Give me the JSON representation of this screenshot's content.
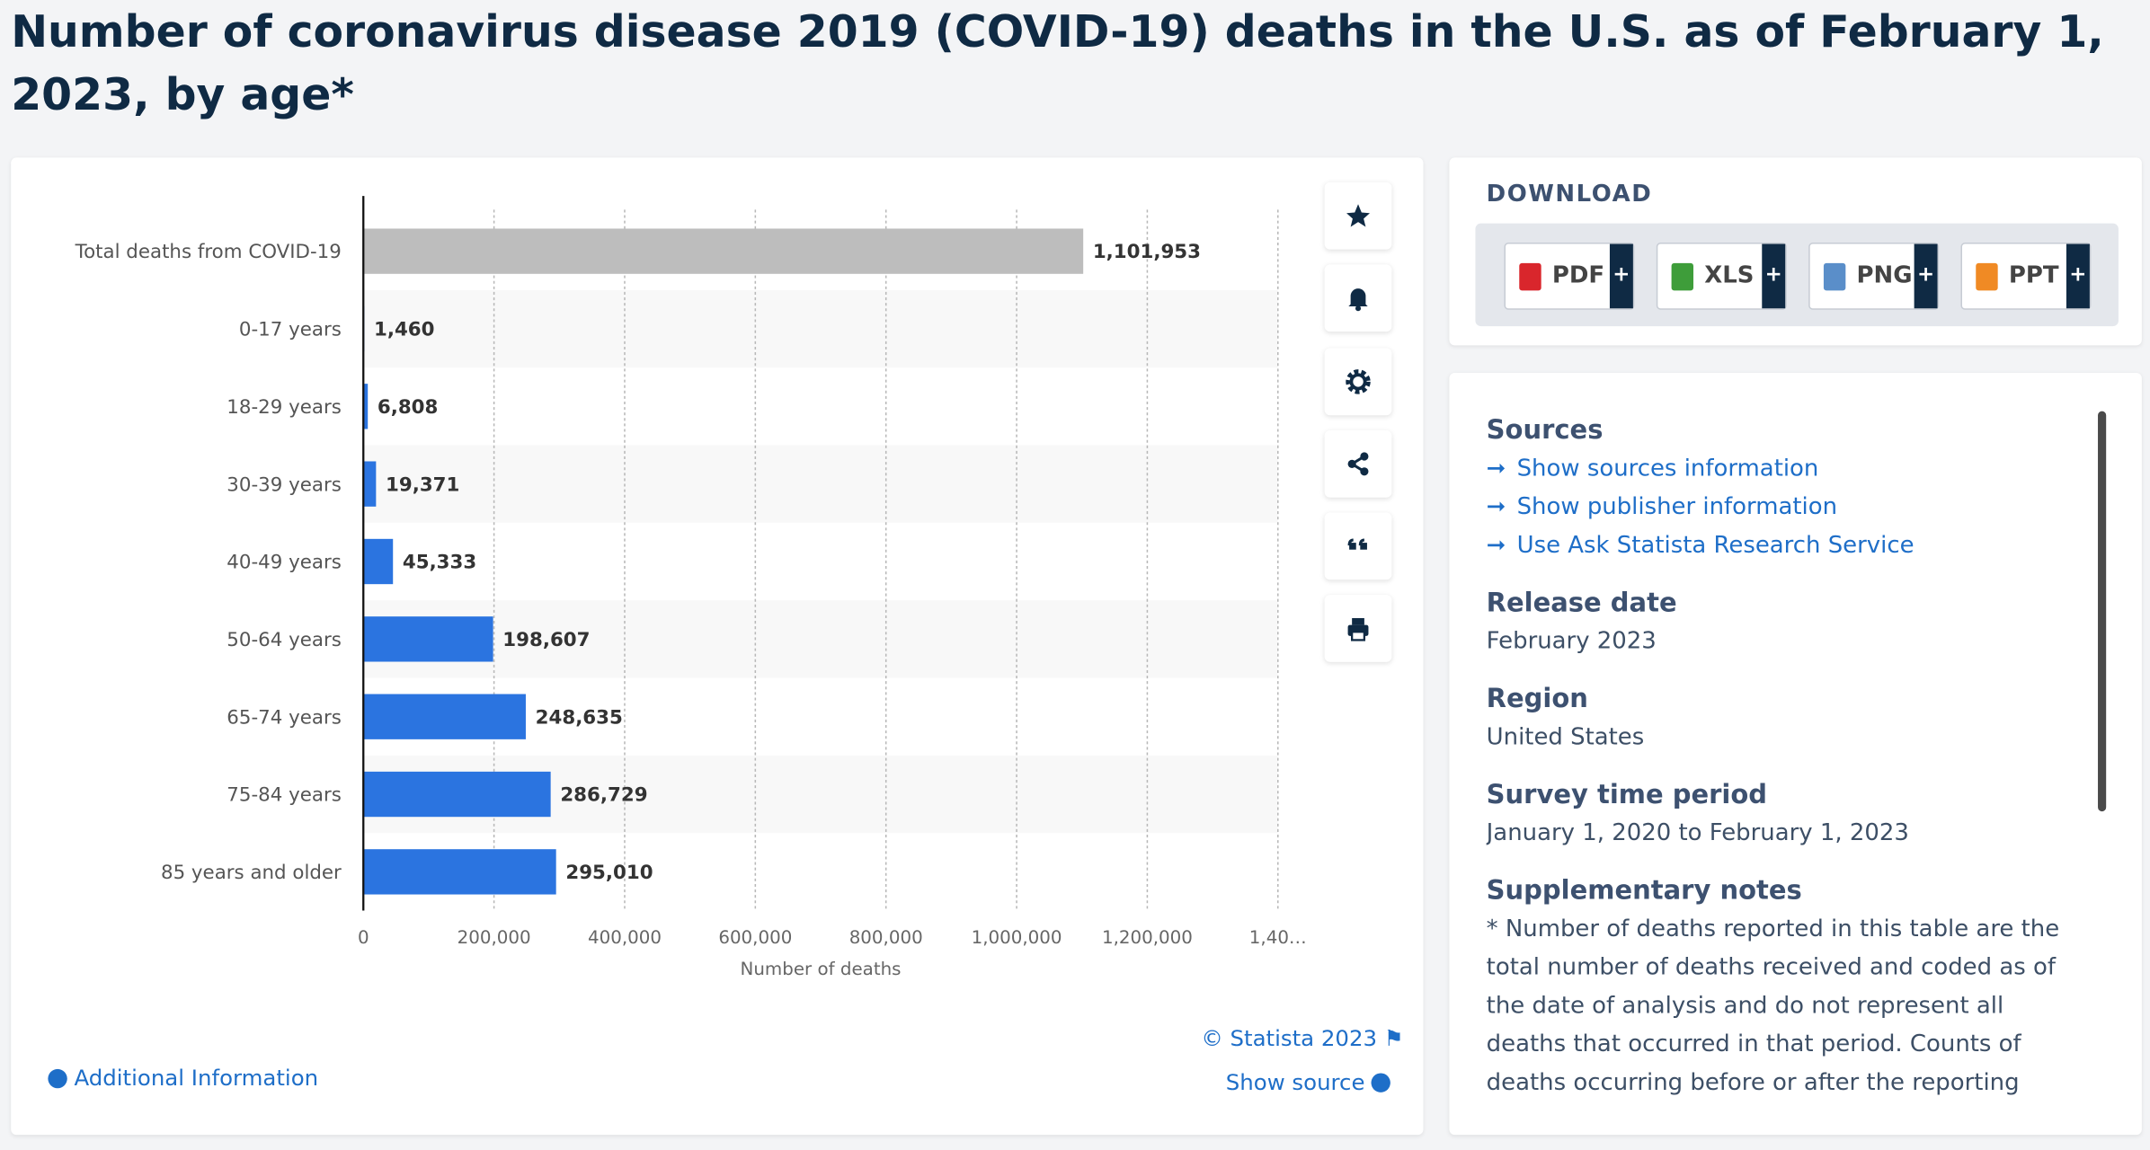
{
  "chart_data": {
    "type": "bar",
    "orientation": "horizontal",
    "title": "Number of coronavirus disease 2019 (COVID-19) deaths in the U.S. as of February 1, 2023, by age*",
    "categories": [
      "Total deaths from COVID-19",
      "0-17 years",
      "18-29 years",
      "30-39 years",
      "40-49 years",
      "50-64 years",
      "65-74 years",
      "75-84 years",
      "85 years and older"
    ],
    "values": [
      1101953,
      1460,
      6808,
      19371,
      45333,
      198607,
      248635,
      286729,
      295010
    ],
    "value_labels": [
      "1,101,953",
      "1,460",
      "6,808",
      "19,371",
      "45,333",
      "198,607",
      "248,635",
      "286,729",
      "295,010"
    ],
    "colors": [
      "#bdbdbd",
      "#2b74e0",
      "#2b74e0",
      "#2b74e0",
      "#2b74e0",
      "#2b74e0",
      "#2b74e0",
      "#2b74e0",
      "#2b74e0"
    ],
    "xlabel": "Number of deaths",
    "xlim": [
      0,
      1400000
    ],
    "xticks": [
      0,
      {
        "value": 200000,
        "label": "200,000"
      },
      {
        "value": 400000,
        "label": "400,000"
      },
      {
        "value": 600000,
        "label": "600,000"
      },
      {
        "value": 800000,
        "label": "800,000"
      },
      {
        "value": 1000000,
        "label": "1,000,000"
      },
      {
        "value": 1200000,
        "label": "1,200,000"
      },
      {
        "value": 1400000,
        "label": "1,40…"
      }
    ],
    "grid": true
  },
  "download": {
    "heading": "DOWNLOAD",
    "formats": [
      "PDF",
      "XLS",
      "PNG",
      "PPT"
    ],
    "plus": "+"
  },
  "sources": {
    "heading": "Sources",
    "links": [
      "Show sources information",
      "Show publisher information",
      "Use Ask Statista Research Service"
    ]
  },
  "details": [
    {
      "heading": "Release date",
      "text": "February 2023"
    },
    {
      "heading": "Region",
      "text": "United States"
    },
    {
      "heading": "Survey time period",
      "text": "January 1, 2020 to February 1, 2023"
    }
  ],
  "notes": {
    "heading": "Supplementary notes",
    "text": "* Number of deaths reported in this table are the total number of deaths received and coded as of the date of analysis and do not represent all deaths that occurred in that period. Counts of deaths occurring before or after the reporting period"
  },
  "footer": {
    "copyright": "© Statista 2023",
    "show_source": "Show source",
    "additional": "Additional Information"
  }
}
